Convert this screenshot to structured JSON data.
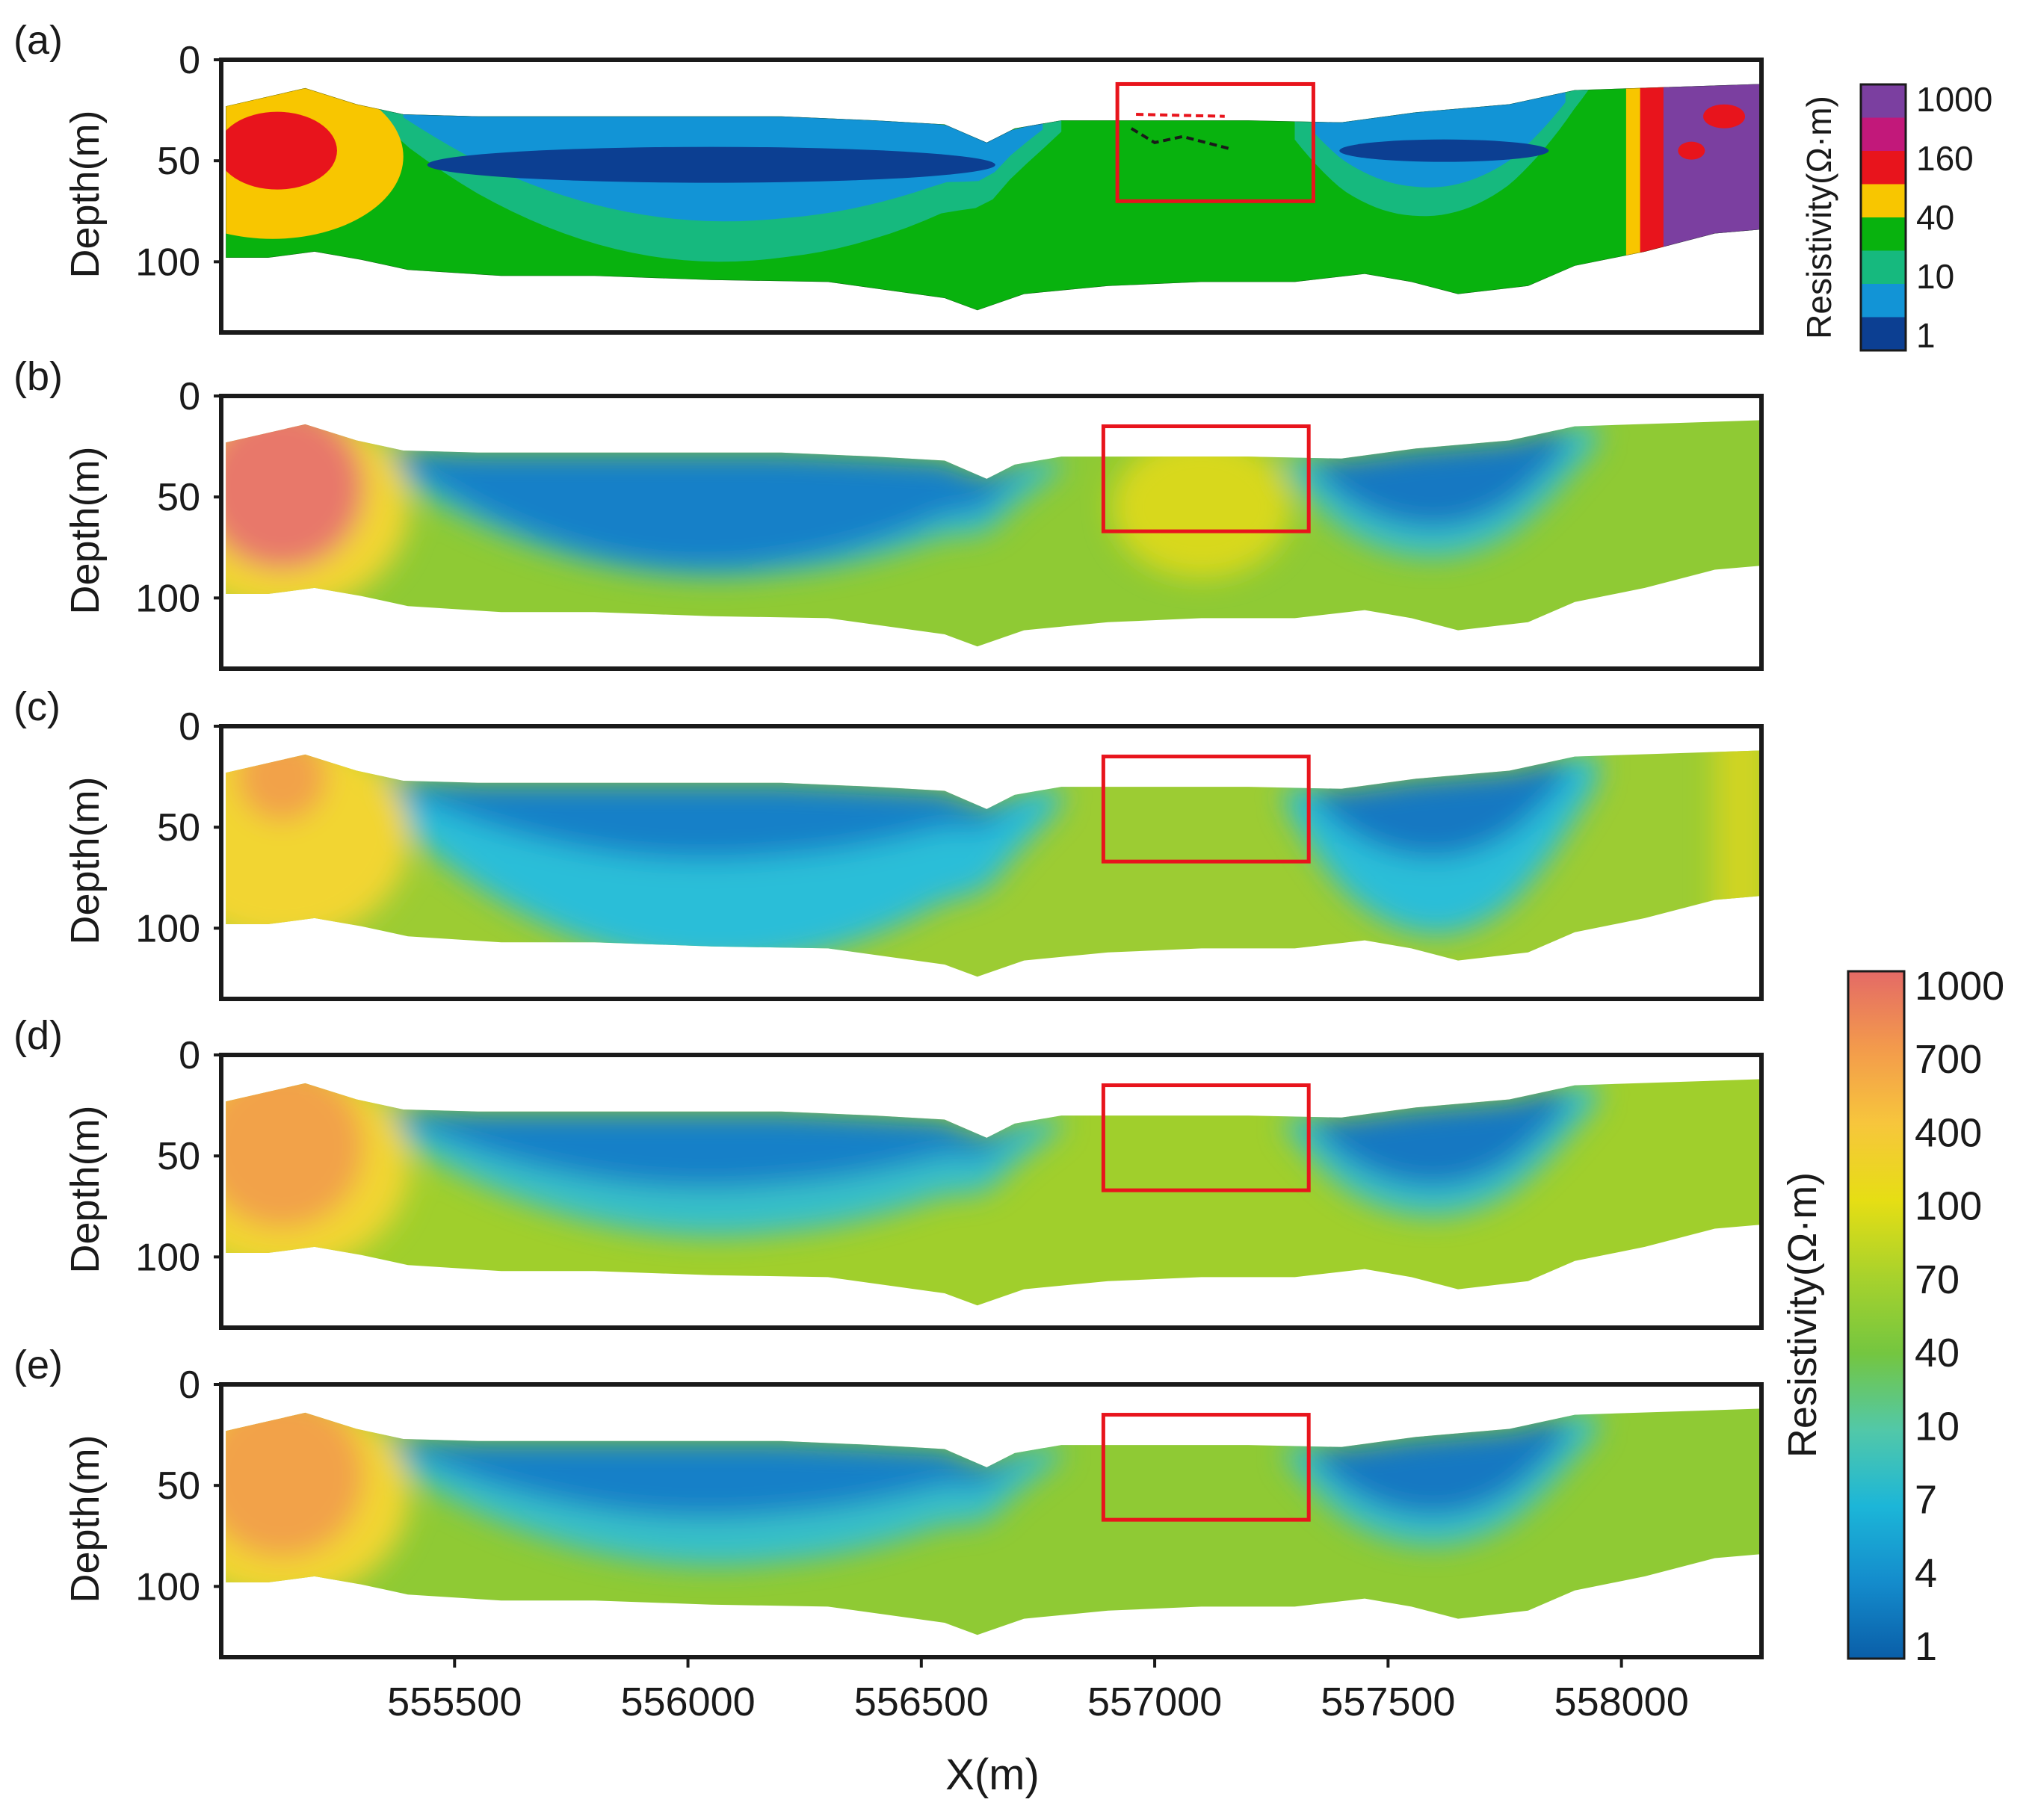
{
  "chart_data": {
    "type": "heatmap",
    "panels": [
      {
        "label": "(a)",
        "ylabel": "Depth(m)",
        "yticks": [
          "0",
          "50",
          "100"
        ],
        "ylim": [
          0,
          135
        ],
        "xlim": [
          555000,
          558300
        ],
        "colorbar": "a",
        "style": "discrete"
      },
      {
        "label": "(b)",
        "ylabel": "Depth(m)",
        "yticks": [
          "0",
          "50",
          "100"
        ],
        "ylim": [
          0,
          135
        ],
        "xlim": [
          555000,
          558300
        ],
        "colorbar": "b",
        "style": "smooth"
      },
      {
        "label": "(c)",
        "ylabel": "Depth(m)",
        "yticks": [
          "0",
          "50",
          "100"
        ],
        "ylim": [
          0,
          135
        ],
        "xlim": [
          555000,
          558300
        ],
        "colorbar": "b",
        "style": "smooth"
      },
      {
        "label": "(d)",
        "ylabel": "Depth(m)",
        "yticks": [
          "0",
          "50",
          "100"
        ],
        "ylim": [
          0,
          135
        ],
        "xlim": [
          555000,
          558300
        ],
        "colorbar": "b",
        "style": "smooth"
      },
      {
        "label": "(e)",
        "ylabel": "Depth(m)",
        "yticks": [
          "0",
          "50",
          "100"
        ],
        "ylim": [
          0,
          135
        ],
        "xlim": [
          555000,
          558300
        ],
        "colorbar": "b",
        "style": "smooth"
      }
    ],
    "xlabel": "X(m)",
    "xticks": [
      {
        "value": 555500,
        "label": "555500"
      },
      {
        "value": 556000,
        "label": "556000"
      },
      {
        "value": 556500,
        "label": "556500"
      },
      {
        "value": 557000,
        "label": "557000"
      },
      {
        "value": 557500,
        "label": "557500"
      },
      {
        "value": 558000,
        "label": "558000"
      }
    ],
    "highlight_box": {
      "x_range": [
        556920,
        557340
      ],
      "depth_range": [
        12,
        70
      ],
      "color": "#e8141c"
    },
    "colorbar_a": {
      "title": "Resistivity(Ω·m)",
      "ticks": [
        "1000",
        "160",
        "40",
        "10",
        "1"
      ],
      "colors": [
        "#7b3fa0",
        "#c2187a",
        "#e8141c",
        "#f8c600",
        "#08b20e",
        "#16b97e",
        "#1294d6",
        "#0c3f92"
      ]
    },
    "colorbar_b": {
      "title": "Resistivity(Ω·m)",
      "ticks": [
        "1000",
        "700",
        "400",
        "100",
        "70",
        "40",
        "10",
        "7",
        "4",
        "1"
      ],
      "colors": [
        "#e46a66",
        "#f39a4c",
        "#f7c63c",
        "#e6de14",
        "#a8d22c",
        "#74c640",
        "#52c8a8",
        "#1cb6d8",
        "#148ccc",
        "#0a5ea8"
      ]
    },
    "profile": {
      "top_depth": [
        [
          555010,
          23
        ],
        [
          555180,
          14
        ],
        [
          555290,
          22
        ],
        [
          555390,
          27
        ],
        [
          555550,
          28
        ],
        [
          555800,
          28
        ],
        [
          556200,
          28
        ],
        [
          556400,
          30
        ],
        [
          556550,
          32
        ],
        [
          556640,
          41
        ],
        [
          556700,
          34
        ],
        [
          556800,
          30
        ],
        [
          557200,
          30
        ],
        [
          557400,
          31
        ],
        [
          557560,
          26
        ],
        [
          557760,
          22
        ],
        [
          557900,
          15
        ],
        [
          558300,
          12
        ]
      ],
      "bottom_depth": [
        [
          555010,
          98
        ],
        [
          555100,
          98
        ],
        [
          555200,
          95
        ],
        [
          555300,
          99
        ],
        [
          555400,
          104
        ],
        [
          555600,
          107
        ],
        [
          555800,
          107
        ],
        [
          556050,
          109
        ],
        [
          556300,
          110
        ],
        [
          556550,
          118
        ],
        [
          556620,
          124
        ],
        [
          556720,
          116
        ],
        [
          556900,
          112
        ],
        [
          557100,
          110
        ],
        [
          557300,
          110
        ],
        [
          557450,
          106
        ],
        [
          557550,
          110
        ],
        [
          557650,
          116
        ],
        [
          557800,
          112
        ],
        [
          557900,
          102
        ],
        [
          558050,
          95
        ],
        [
          558200,
          86
        ],
        [
          558300,
          84
        ]
      ]
    }
  }
}
